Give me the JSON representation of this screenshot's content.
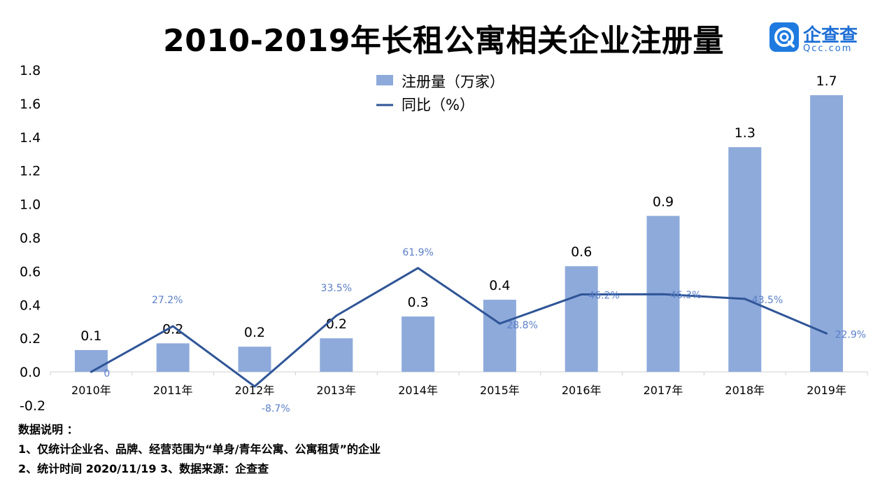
{
  "title": "2010-2019年长租公寓相关企业注册量",
  "logo": {
    "name": "企查查",
    "url": "Qcc.com"
  },
  "chart_data": {
    "type": "bar",
    "categories": [
      "2010年",
      "2011年",
      "2012年",
      "2013年",
      "2014年",
      "2015年",
      "2016年",
      "2017年",
      "2018年",
      "2019年"
    ],
    "series": [
      {
        "name": "注册量（万家）",
        "type": "bar",
        "color": "#8eaadb",
        "values": [
          0.13,
          0.17,
          0.15,
          0.2,
          0.33,
          0.43,
          0.63,
          0.93,
          1.34,
          1.65
        ],
        "labels": [
          "0.1",
          "0.2",
          "0.2",
          "0.2",
          "0.3",
          "0.4",
          "0.6",
          "0.9",
          "1.3",
          "1.7"
        ]
      },
      {
        "name": "同比（%）",
        "type": "line",
        "color": "#2f5597",
        "values": [
          0,
          27.2,
          -8.7,
          33.5,
          61.9,
          28.8,
          46.2,
          46.3,
          43.5,
          22.9
        ],
        "labels": [
          "0",
          "27.2%",
          "-8.7%",
          "33.5%",
          "61.9%",
          "28.8%",
          "46.2%",
          "46.3%",
          "43.5%",
          "22.9%"
        ]
      }
    ],
    "yticks": [
      "-0.2",
      "0.0",
      "0.2",
      "0.4",
      "0.6",
      "0.8",
      "1.0",
      "1.2",
      "1.4",
      "1.6",
      "1.8"
    ],
    "ylim": [
      -0.2,
      1.8
    ],
    "line_scale_note_free": true,
    "grid": false,
    "legend_position": "top-center"
  },
  "notes": {
    "heading": "数据说明 ：",
    "line1": "1、仅统计企业名、品牌、经营范围为“单身/青年公寓、公寓租赁”的企业",
    "line2": "2、统计时间  2020/11/19    3、数据来源：企查查"
  }
}
